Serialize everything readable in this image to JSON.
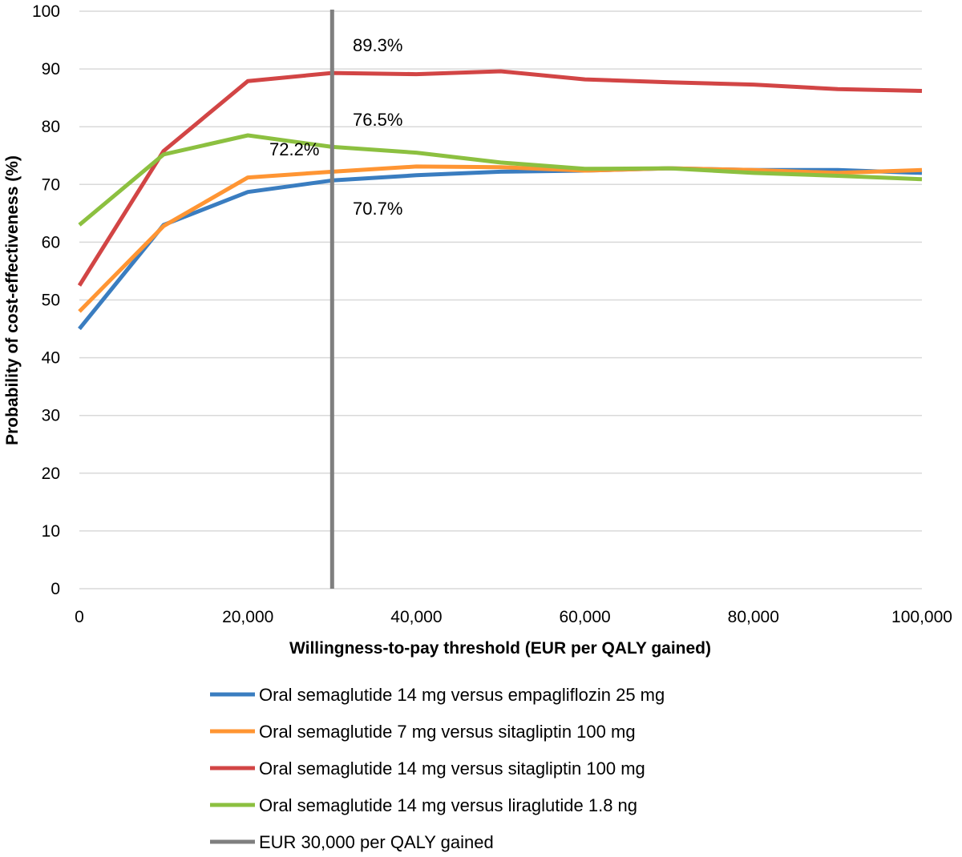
{
  "chart_data": {
    "type": "line",
    "xlabel": "Willingness-to-pay threshold (EUR per QALY gained)",
    "ylabel": "Probability of cost-effectiveness (%)",
    "xlim": [
      0,
      100000
    ],
    "ylim": [
      0,
      100
    ],
    "x_ticks": [
      "0",
      "20,000",
      "40,000",
      "60,000",
      "80,000",
      "100,000"
    ],
    "y_ticks": [
      "0",
      "10",
      "20",
      "30",
      "40",
      "50",
      "60",
      "70",
      "80",
      "90",
      "100"
    ],
    "grid": "horizontal",
    "legend_position": "bottom",
    "x": [
      0,
      10000,
      20000,
      30000,
      40000,
      50000,
      60000,
      70000,
      80000,
      90000,
      100000
    ],
    "series": [
      {
        "name": "Oral semaglutide 14 mg versus empagliflozin 25 mg",
        "color": "#3a7dc0",
        "values": [
          45.0,
          63.0,
          68.7,
          70.7,
          71.6,
          72.2,
          72.4,
          72.8,
          72.5,
          72.5,
          72.0
        ]
      },
      {
        "name": "Oral semaglutide 7 mg versus sitagliptin 100 mg",
        "color": "#ff9533",
        "values": [
          48.0,
          62.8,
          71.2,
          72.2,
          73.1,
          73.0,
          72.4,
          72.8,
          72.5,
          72.0,
          72.5
        ]
      },
      {
        "name": "Oral semaglutide 14 mg versus sitagliptin 100 mg",
        "color": "#d24545",
        "values": [
          52.5,
          75.8,
          87.9,
          89.3,
          89.1,
          89.6,
          88.2,
          87.7,
          87.3,
          86.5,
          86.2
        ]
      },
      {
        "name": "Oral semaglutide 14 mg versus liraglutide 1.8 ng",
        "color": "#8cc040",
        "values": [
          63.0,
          75.2,
          78.5,
          76.5,
          75.5,
          73.8,
          72.7,
          72.8,
          72.0,
          71.5,
          70.9
        ]
      }
    ],
    "reference_line": {
      "name": "EUR 30,000 per QALY gained",
      "x": 30000,
      "color": "#7f7f7f"
    },
    "annotations": [
      {
        "text": "89.3%",
        "x": 30000,
        "y": 89.3
      },
      {
        "text": "76.5%",
        "x": 30000,
        "y": 76.5
      },
      {
        "text": "72.2%",
        "x": 30000,
        "y": 72.2
      },
      {
        "text": "70.7%",
        "x": 30000,
        "y": 70.7
      }
    ]
  }
}
